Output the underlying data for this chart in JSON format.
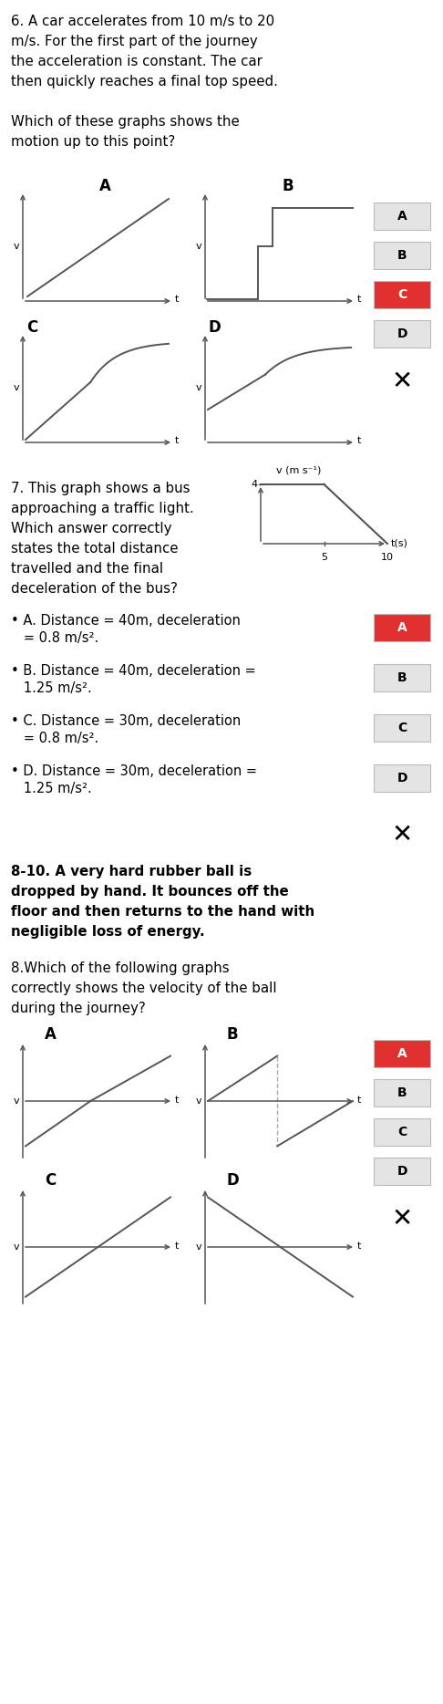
{
  "q6_text_lines": [
    "6. A car accelerates from 10 m/s to 20",
    "m/s. For the first part of the journey",
    "the acceleration is constant. The car",
    "then quickly reaches a final top speed.",
    "",
    "Which of these graphs shows the",
    "motion up to this point?"
  ],
  "q7_text_lines": [
    "7. This graph shows a bus",
    "approaching a traffic light.",
    "Which answer correctly",
    "states the total distance",
    "travelled and the final",
    "deceleration of the bus?"
  ],
  "q7_answer_lines": [
    [
      "• A. Distance = 40m, deceleration",
      "   = 0.8 m/s²."
    ],
    [
      "• B. Distance = 40m, deceleration =",
      "   1.25 m/s²."
    ],
    [
      "• C. Distance = 30m, deceleration",
      "   = 0.8 m/s²."
    ],
    [
      "• D. Distance = 30m, deceleration =",
      "   1.25 m/s²."
    ]
  ],
  "q810_intro_lines": [
    "8-10. A very hard rubber ball is",
    "dropped by hand. It bounces off the",
    "floor and then returns to the hand with",
    "negligible loss of energy."
  ],
  "q8_text_lines": [
    "8.Which of the following graphs",
    "correctly shows the velocity of the ball",
    "during the journey?"
  ],
  "bg_color": "#ffffff",
  "btn_correct_color": "#e03030",
  "btn_normal_color": "#e4e4e4",
  "btn_text_correct": "#ffffff",
  "btn_text_normal": "#000000",
  "gc": "#555555",
  "correct_q6": "C",
  "correct_q7": "A",
  "correct_q8": "A"
}
